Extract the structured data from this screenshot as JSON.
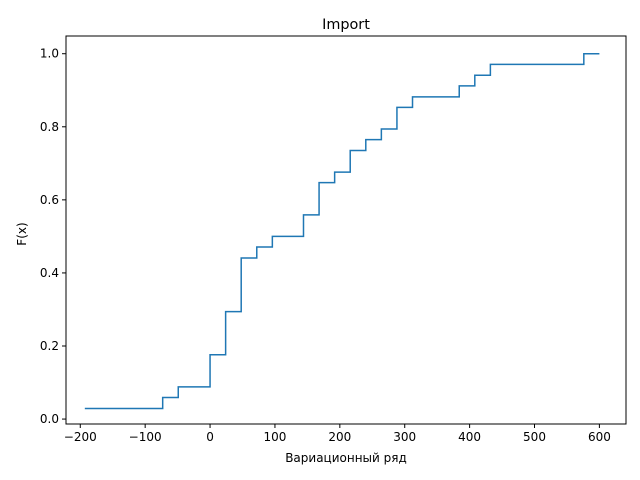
{
  "chart_data": {
    "type": "line",
    "step": "post",
    "title": "Import",
    "xlabel": "Вариационный ряд",
    "ylabel": "F(x)",
    "xlim": [
      -222,
      641
    ],
    "ylim": [
      -0.0135,
      1.0485
    ],
    "grid": false,
    "xticks": [
      -200,
      -100,
      0,
      100,
      200,
      300,
      400,
      500,
      600
    ],
    "xtick_labels": [
      "−200",
      "−100",
      "0",
      "100",
      "200",
      "300",
      "400",
      "500",
      "600"
    ],
    "yticks": [
      0.0,
      0.2,
      0.4,
      0.6,
      0.8,
      1.0
    ],
    "ytick_labels": [
      "0.0",
      "0.2",
      "0.4",
      "0.6",
      "0.8",
      "1.0"
    ],
    "series": [
      {
        "color": "#1f77b4",
        "x": [
          -193,
          -73,
          -49,
          0,
          24,
          48,
          72,
          96,
          144,
          168,
          192,
          216,
          240,
          264,
          288,
          312,
          384,
          408,
          432,
          576,
          600
        ],
        "y": [
          0.029,
          0.059,
          0.088,
          0.176,
          0.294,
          0.441,
          0.471,
          0.5,
          0.559,
          0.647,
          0.676,
          0.735,
          0.765,
          0.794,
          0.853,
          0.882,
          0.912,
          0.941,
          0.971,
          1.0,
          1.0
        ]
      }
    ]
  }
}
